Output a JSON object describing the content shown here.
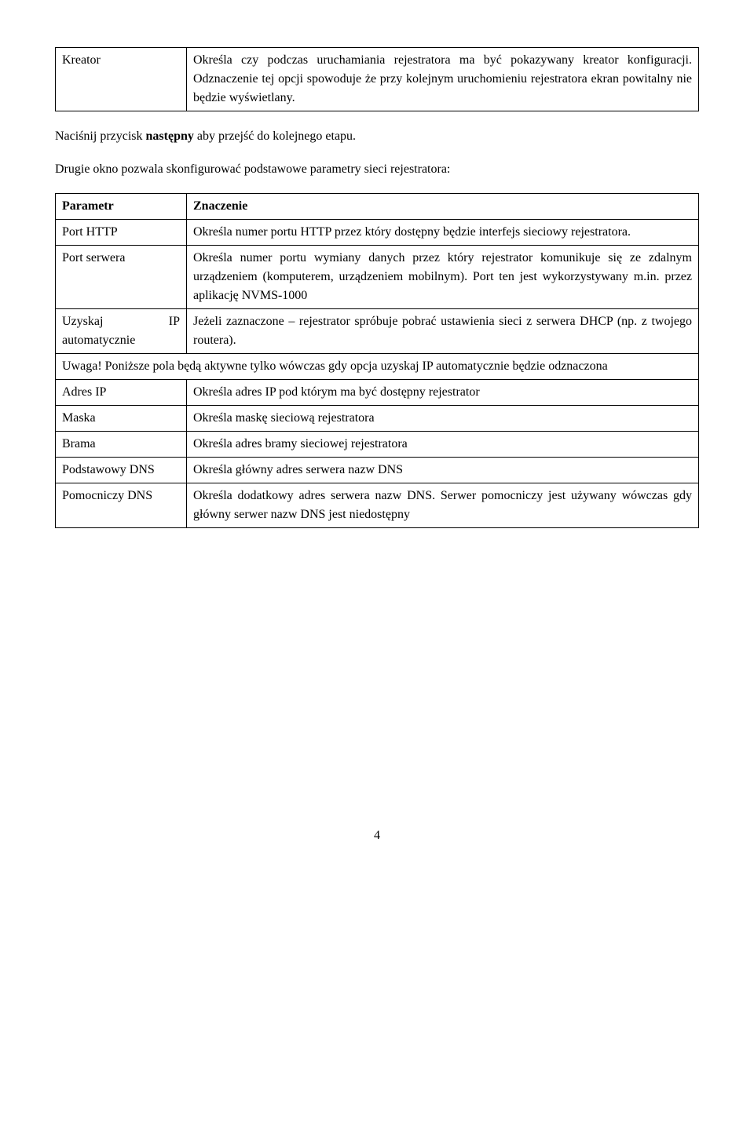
{
  "table1": {
    "row1_col1": "Kreator",
    "row1_col2": "Określa czy podczas uruchamiania rejestratora ma być pokazywany kreator konfiguracji. Odznaczenie tej opcji spowoduje że przy kolejnym uruchomieniu rejestratora ekran powitalny nie będzie wyświetlany."
  },
  "para1_a": "Naciśnij przycisk ",
  "para1_bold": "następny",
  "para1_b": " aby przejść do kolejnego etapu.",
  "para2": "Drugie okno pozwala skonfigurować podstawowe parametry sieci rejestratora:",
  "table2": {
    "r1c1": "Parametr",
    "r1c2": "Znaczenie",
    "r2c1": "Port HTTP",
    "r2c2": "Określa numer portu HTTP przez który dostępny będzie interfejs sieciowy rejestratora.",
    "r3c1": "Port serwera",
    "r3c2": "Określa numer portu wymiany danych przez który rejestrator komunikuje się ze zdalnym urządzeniem (komputerem, urządzeniem mobilnym). Port ten jest wykorzystywany m.in. przez aplikację NVMS-1000",
    "r4c1": "Uzyskaj IP automatycznie",
    "r4c2": "Jeżeli zaznaczone – rejestrator spróbuje pobrać ustawienia sieci z serwera DHCP (np. z twojego routera).",
    "r5span": "Uwaga! Poniższe pola będą aktywne tylko wówczas gdy opcja uzyskaj IP automatycznie będzie odznaczona",
    "r6c1": "Adres IP",
    "r6c2": "Określa adres IP pod którym ma być dostępny rejestrator",
    "r7c1": "Maska",
    "r7c2": "Określa maskę sieciową rejestratora",
    "r8c1": "Brama",
    "r8c2": "Określa adres bramy sieciowej rejestratora",
    "r9c1": "Podstawowy DNS",
    "r9c2": "Określa główny adres serwera nazw DNS",
    "r10c1": "Pomocniczy DNS",
    "r10c2": "Określa dodatkowy adres serwera nazw DNS. Serwer pomocniczy jest używany wówczas gdy główny serwer nazw DNS jest niedostępny"
  },
  "pageNumber": "4"
}
